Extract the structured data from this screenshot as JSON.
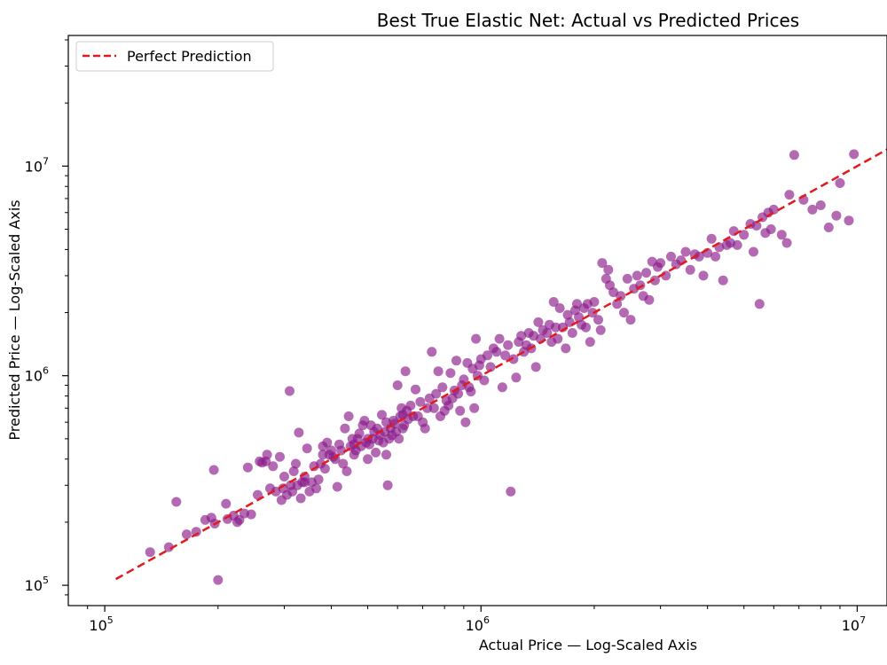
{
  "chart_data": {
    "type": "scatter",
    "title": "Best True Elastic Net: Actual vs Predicted Prices",
    "xlabel": "Actual Price — Log-Scaled Axis",
    "ylabel": "Predicted Price — Log-Scaled Axis",
    "xscale": "log",
    "yscale": "log",
    "xlim": [
      80000,
      12000000
    ],
    "ylim": [
      80000,
      42000000
    ],
    "xticks": [
      {
        "value": 100000,
        "base": "10",
        "exp": "5"
      },
      {
        "value": 1000000,
        "base": "10",
        "exp": "6"
      },
      {
        "value": 10000000,
        "base": "10",
        "exp": "7"
      }
    ],
    "yticks": [
      {
        "value": 100000,
        "base": "10",
        "exp": "5"
      },
      {
        "value": 1000000,
        "base": "10",
        "exp": "6"
      },
      {
        "value": 10000000,
        "base": "10",
        "exp": "7"
      }
    ],
    "grid": false,
    "legend": {
      "position": "top-left",
      "entries": [
        {
          "label": "Perfect Prediction",
          "color": "#e31a1c",
          "style": "dashed"
        }
      ]
    },
    "reference_line": {
      "x": [
        107000,
        12000000
      ],
      "y": [
        107000,
        12000000
      ],
      "color": "#e31a1c"
    },
    "point_color": "#8b1a8b",
    "points": [
      [
        132000,
        144000
      ],
      [
        148000,
        152000
      ],
      [
        155000,
        250000
      ],
      [
        165000,
        175000
      ],
      [
        175000,
        180000
      ],
      [
        185000,
        205000
      ],
      [
        192000,
        210000
      ],
      [
        195000,
        355000
      ],
      [
        196000,
        197000
      ],
      [
        200000,
        106000
      ],
      [
        210000,
        245000
      ],
      [
        212000,
        207000
      ],
      [
        220000,
        215000
      ],
      [
        225000,
        200000
      ],
      [
        228000,
        205000
      ],
      [
        235000,
        220000
      ],
      [
        240000,
        365000
      ],
      [
        245000,
        218000
      ],
      [
        255000,
        270000
      ],
      [
        258000,
        390000
      ],
      [
        262000,
        385000
      ],
      [
        268000,
        390000
      ],
      [
        270000,
        420000
      ],
      [
        275000,
        290000
      ],
      [
        280000,
        370000
      ],
      [
        285000,
        280000
      ],
      [
        292000,
        410000
      ],
      [
        295000,
        255000
      ],
      [
        298000,
        290000
      ],
      [
        300000,
        330000
      ],
      [
        305000,
        270000
      ],
      [
        310000,
        845000
      ],
      [
        312000,
        300000
      ],
      [
        315000,
        280000
      ],
      [
        318000,
        350000
      ],
      [
        322000,
        380000
      ],
      [
        325000,
        300000
      ],
      [
        328000,
        535000
      ],
      [
        332000,
        260000
      ],
      [
        335000,
        310000
      ],
      [
        340000,
        310000
      ],
      [
        345000,
        450000
      ],
      [
        350000,
        280000
      ],
      [
        355000,
        310000
      ],
      [
        360000,
        370000
      ],
      [
        365000,
        290000
      ],
      [
        370000,
        320000
      ],
      [
        375000,
        380000
      ],
      [
        380000,
        460000
      ],
      [
        385000,
        360000
      ],
      [
        390000,
        480000
      ],
      [
        395000,
        420000
      ],
      [
        400000,
        440000
      ],
      [
        405000,
        410000
      ],
      [
        410000,
        400000
      ],
      [
        415000,
        295000
      ],
      [
        420000,
        470000
      ],
      [
        425000,
        440000
      ],
      [
        430000,
        380000
      ],
      [
        435000,
        560000
      ],
      [
        440000,
        350000
      ],
      [
        445000,
        640000
      ],
      [
        450000,
        460000
      ],
      [
        455000,
        500000
      ],
      [
        460000,
        420000
      ],
      [
        465000,
        440000
      ],
      [
        470000,
        500000
      ],
      [
        475000,
        530000
      ],
      [
        480000,
        460000
      ],
      [
        485000,
        580000
      ],
      [
        490000,
        610000
      ],
      [
        495000,
        480000
      ],
      [
        500000,
        400000
      ],
      [
        505000,
        470000
      ],
      [
        510000,
        580000
      ],
      [
        515000,
        500000
      ],
      [
        520000,
        540000
      ],
      [
        525000,
        430000
      ],
      [
        530000,
        560000
      ],
      [
        535000,
        490000
      ],
      [
        540000,
        520000
      ],
      [
        545000,
        650000
      ],
      [
        550000,
        480000
      ],
      [
        555000,
        540000
      ],
      [
        560000,
        420000
      ],
      [
        565000,
        300000
      ],
      [
        570000,
        500000
      ],
      [
        575000,
        560000
      ],
      [
        580000,
        520000
      ],
      [
        585000,
        610000
      ],
      [
        590000,
        590000
      ],
      [
        595000,
        540000
      ],
      [
        600000,
        900000
      ],
      [
        605000,
        500000
      ],
      [
        610000,
        640000
      ],
      [
        615000,
        700000
      ],
      [
        620000,
        560000
      ],
      [
        625000,
        580000
      ],
      [
        630000,
        1050000
      ],
      [
        635000,
        680000
      ],
      [
        640000,
        620000
      ],
      [
        650000,
        720000
      ],
      [
        660000,
        640000
      ],
      [
        670000,
        860000
      ],
      [
        680000,
        640000
      ],
      [
        690000,
        750000
      ],
      [
        700000,
        600000
      ],
      [
        710000,
        560000
      ],
      [
        720000,
        700000
      ],
      [
        730000,
        780000
      ],
      [
        740000,
        1300000
      ],
      [
        750000,
        700000
      ],
      [
        760000,
        820000
      ],
      [
        770000,
        1050000
      ],
      [
        780000,
        640000
      ],
      [
        790000,
        880000
      ],
      [
        800000,
        680000
      ],
      [
        810000,
        760000
      ],
      [
        820000,
        720000
      ],
      [
        830000,
        1030000
      ],
      [
        840000,
        780000
      ],
      [
        850000,
        850000
      ],
      [
        860000,
        1180000
      ],
      [
        870000,
        820000
      ],
      [
        880000,
        680000
      ],
      [
        890000,
        900000
      ],
      [
        900000,
        960000
      ],
      [
        910000,
        600000
      ],
      [
        920000,
        1150000
      ],
      [
        930000,
        880000
      ],
      [
        940000,
        840000
      ],
      [
        950000,
        1080000
      ],
      [
        960000,
        700000
      ],
      [
        970000,
        1500000
      ],
      [
        980000,
        1000000
      ],
      [
        990000,
        1120000
      ],
      [
        1000000,
        1200000
      ],
      [
        1020000,
        950000
      ],
      [
        1040000,
        1250000
      ],
      [
        1060000,
        1100000
      ],
      [
        1080000,
        1350000
      ],
      [
        1100000,
        1300000
      ],
      [
        1120000,
        1500000
      ],
      [
        1140000,
        880000
      ],
      [
        1160000,
        1250000
      ],
      [
        1180000,
        1400000
      ],
      [
        1200000,
        280000
      ],
      [
        1220000,
        1200000
      ],
      [
        1240000,
        980000
      ],
      [
        1260000,
        1450000
      ],
      [
        1280000,
        1550000
      ],
      [
        1300000,
        1300000
      ],
      [
        1320000,
        1400000
      ],
      [
        1340000,
        1600000
      ],
      [
        1360000,
        1350000
      ],
      [
        1380000,
        1550000
      ],
      [
        1400000,
        1100000
      ],
      [
        1420000,
        1800000
      ],
      [
        1440000,
        1500000
      ],
      [
        1460000,
        1650000
      ],
      [
        1500000,
        1600000
      ],
      [
        1520000,
        1750000
      ],
      [
        1540000,
        1450000
      ],
      [
        1560000,
        2250000
      ],
      [
        1580000,
        1700000
      ],
      [
        1600000,
        1500000
      ],
      [
        1620000,
        2100000
      ],
      [
        1650000,
        1700000
      ],
      [
        1680000,
        1350000
      ],
      [
        1700000,
        1950000
      ],
      [
        1720000,
        1800000
      ],
      [
        1750000,
        1600000
      ],
      [
        1780000,
        2050000
      ],
      [
        1800000,
        2200000
      ],
      [
        1820000,
        1900000
      ],
      [
        1850000,
        1750000
      ],
      [
        1880000,
        2100000
      ],
      [
        1900000,
        1700000
      ],
      [
        1920000,
        2200000
      ],
      [
        1950000,
        1450000
      ],
      [
        1980000,
        2000000
      ],
      [
        2000000,
        2250000
      ],
      [
        2050000,
        1850000
      ],
      [
        2080000,
        1650000
      ],
      [
        2100000,
        3450000
      ],
      [
        2150000,
        2900000
      ],
      [
        2180000,
        3200000
      ],
      [
        2200000,
        2700000
      ],
      [
        2250000,
        2500000
      ],
      [
        2300000,
        2200000
      ],
      [
        2350000,
        2400000
      ],
      [
        2400000,
        2000000
      ],
      [
        2450000,
        2900000
      ],
      [
        2500000,
        1850000
      ],
      [
        2550000,
        2600000
      ],
      [
        2600000,
        3000000
      ],
      [
        2650000,
        2700000
      ],
      [
        2700000,
        2400000
      ],
      [
        2750000,
        3100000
      ],
      [
        2800000,
        2300000
      ],
      [
        2850000,
        3500000
      ],
      [
        2900000,
        2850000
      ],
      [
        2950000,
        3300000
      ],
      [
        3000000,
        3450000
      ],
      [
        3100000,
        3000000
      ],
      [
        3200000,
        3700000
      ],
      [
        3300000,
        3400000
      ],
      [
        3400000,
        3550000
      ],
      [
        3500000,
        3900000
      ],
      [
        3600000,
        3200000
      ],
      [
        3700000,
        3800000
      ],
      [
        3800000,
        3700000
      ],
      [
        3900000,
        3000000
      ],
      [
        4000000,
        3850000
      ],
      [
        4100000,
        4500000
      ],
      [
        4200000,
        3700000
      ],
      [
        4300000,
        4100000
      ],
      [
        4400000,
        2850000
      ],
      [
        4500000,
        4200000
      ],
      [
        4600000,
        4300000
      ],
      [
        4700000,
        4900000
      ],
      [
        4800000,
        4200000
      ],
      [
        5000000,
        4700000
      ],
      [
        5200000,
        5300000
      ],
      [
        5300000,
        3900000
      ],
      [
        5400000,
        5200000
      ],
      [
        5500000,
        2200000
      ],
      [
        5600000,
        5700000
      ],
      [
        5700000,
        4800000
      ],
      [
        5800000,
        6000000
      ],
      [
        5900000,
        5000000
      ],
      [
        6000000,
        6200000
      ],
      [
        6300000,
        4700000
      ],
      [
        6500000,
        4300000
      ],
      [
        6600000,
        7300000
      ],
      [
        6800000,
        11300000
      ],
      [
        7200000,
        6900000
      ],
      [
        7600000,
        6200000
      ],
      [
        8000000,
        6500000
      ],
      [
        8400000,
        5100000
      ],
      [
        8800000,
        5800000
      ],
      [
        9000000,
        8300000
      ],
      [
        9500000,
        5500000
      ],
      [
        9800000,
        11400000
      ],
      [
        500000,
        500000
      ],
      [
        560000,
        600000
      ],
      [
        620000,
        650000
      ],
      [
        380000,
        420000
      ],
      [
        340000,
        330000
      ],
      [
        460000,
        470000
      ]
    ]
  }
}
